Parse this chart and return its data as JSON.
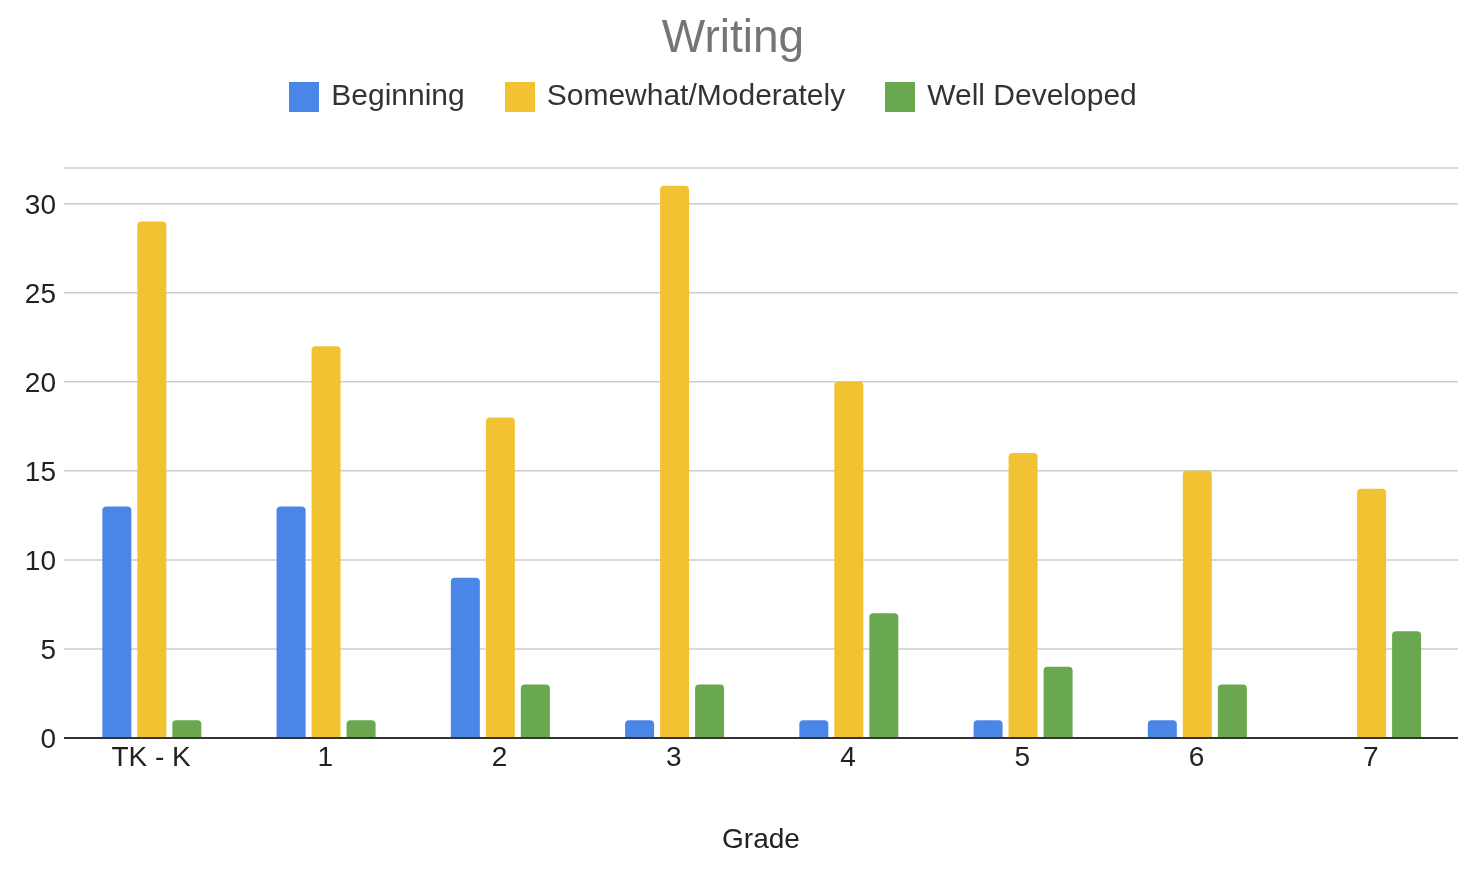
{
  "chart_data": {
    "type": "bar",
    "title": "Writing",
    "xlabel": "Grade",
    "categories": [
      "TK - K",
      "1",
      "2",
      "3",
      "4",
      "5",
      "6",
      "7"
    ],
    "series": [
      {
        "name": "Beginning",
        "color": "#4a86e8",
        "values": [
          13,
          13,
          9,
          1,
          1,
          1,
          1,
          0
        ]
      },
      {
        "name": "Somewhat/Moderately",
        "color": "#f1c232",
        "values": [
          29,
          22,
          18,
          31,
          20,
          16,
          15,
          14
        ]
      },
      {
        "name": "Well Developed",
        "color": "#6aa84f",
        "values": [
          1,
          1,
          3,
          3,
          7,
          4,
          3,
          6
        ]
      }
    ],
    "ylim": [
      0,
      32
    ],
    "yticks": [
      0,
      5,
      10,
      15,
      20,
      25,
      30
    ],
    "grid": "y",
    "legend": "top"
  }
}
